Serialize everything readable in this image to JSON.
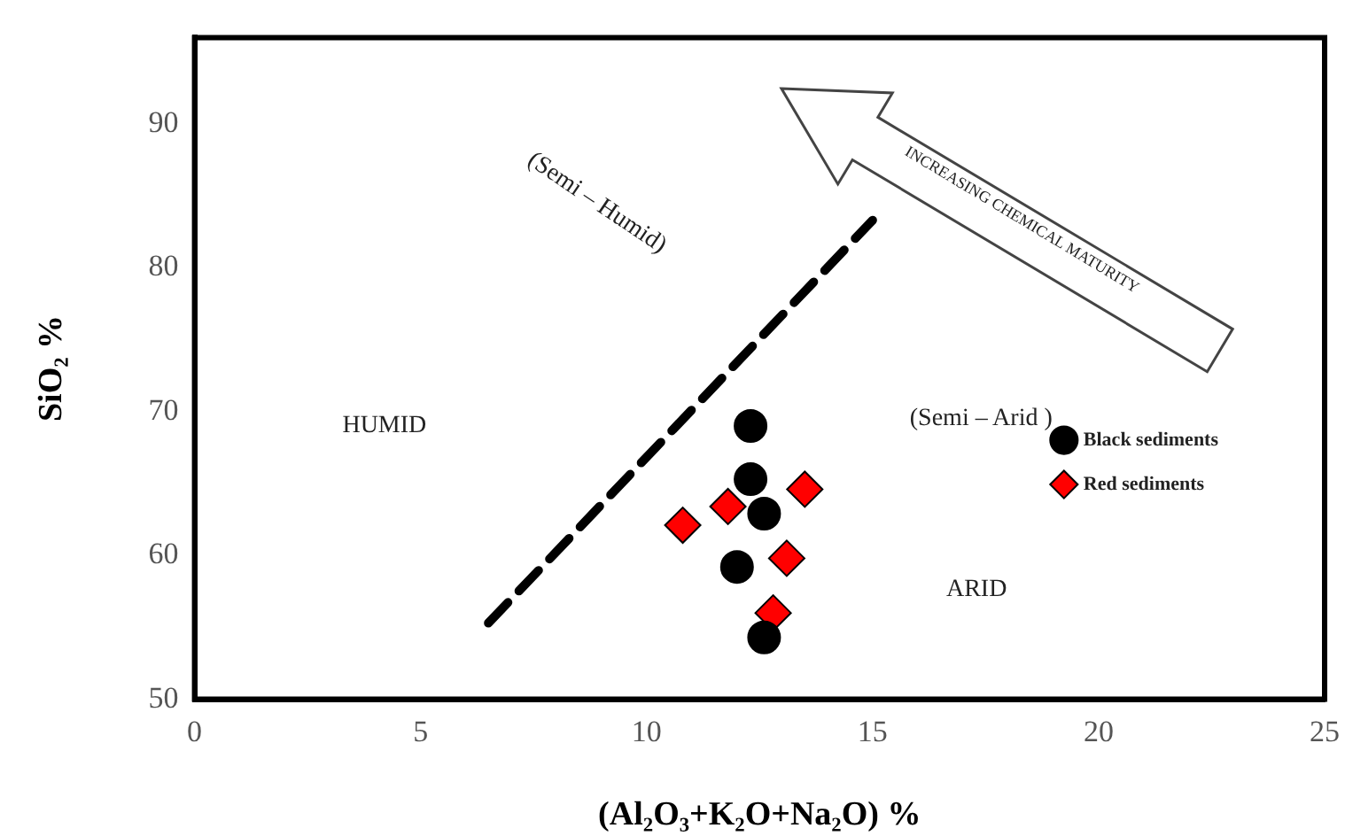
{
  "chart_data": {
    "type": "scatter",
    "xlabel": "(Al₂O₃+K₂O+Na₂O) %",
    "ylabel": "SiO₂ %",
    "xlim": [
      0,
      25
    ],
    "xticks": [
      0,
      5,
      10,
      15,
      20,
      25
    ],
    "ylim": [
      50,
      96
    ],
    "yticks": [
      50,
      60,
      70,
      80,
      90
    ],
    "grid": false,
    "legend": "right",
    "annotations": [
      "(Semi – Humid)",
      "HUMID",
      "(Semi – Arid )",
      "ARID",
      "INCREASING CHEMICAL MATURITY"
    ],
    "series": [
      {
        "name": "Black sediments",
        "color": "#000000",
        "marker": "circle",
        "x": [
          12.3,
          12.3,
          12.6,
          12.0,
          12.6
        ],
        "values": [
          69.0,
          65.3,
          62.9,
          59.2,
          54.3
        ]
      },
      {
        "name": "Red sediments",
        "color": "#ff0000",
        "marker": "diamond",
        "x": [
          10.8,
          11.8,
          13.5,
          13.1,
          12.8
        ],
        "values": [
          62.1,
          63.4,
          64.6,
          59.8,
          56.0
        ]
      },
      {
        "type": "line",
        "color": "#000000",
        "marker": "none",
        "line_style": "dashed",
        "x": [
          6.5,
          15.0
        ],
        "values": [
          55.3,
          83.3
        ]
      }
    ]
  }
}
